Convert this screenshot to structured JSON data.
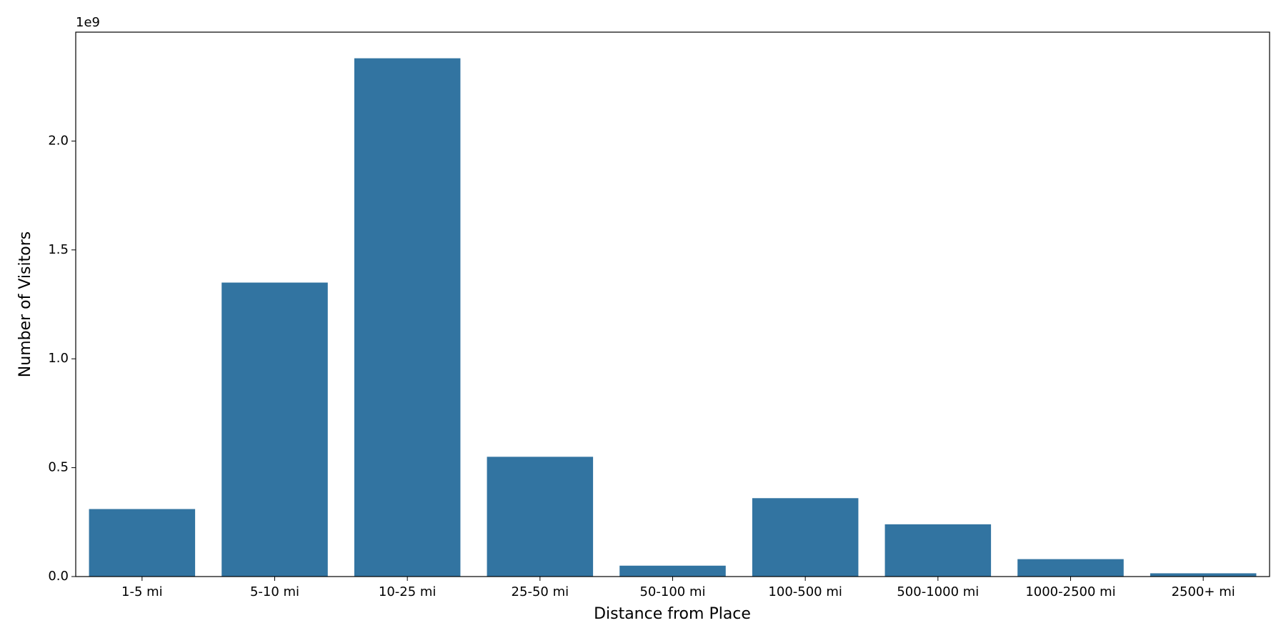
{
  "chart_data": {
    "type": "bar",
    "x_label": "Distance from Place",
    "y_label": "Number of Visitors",
    "y_offset_label": "1e9",
    "categories": [
      "1-5 mi",
      "5-10 mi",
      "10-25 mi",
      "25-50 mi",
      "50-100 mi",
      "100-500 mi",
      "500-1000 mi",
      "1000-2500 mi",
      "2500+ mi"
    ],
    "values": [
      0.31,
      1.35,
      2.38,
      0.55,
      0.05,
      0.36,
      0.24,
      0.08,
      0.015
    ],
    "color": "#3274a1",
    "ylim": [
      0,
      2.5
    ],
    "yticks": [
      {
        "value": 0,
        "label": "0.0"
      },
      0.5,
      {
        "value": 1,
        "label": "1.0"
      },
      1.5,
      {
        "value": 2,
        "label": "2.0"
      }
    ]
  }
}
